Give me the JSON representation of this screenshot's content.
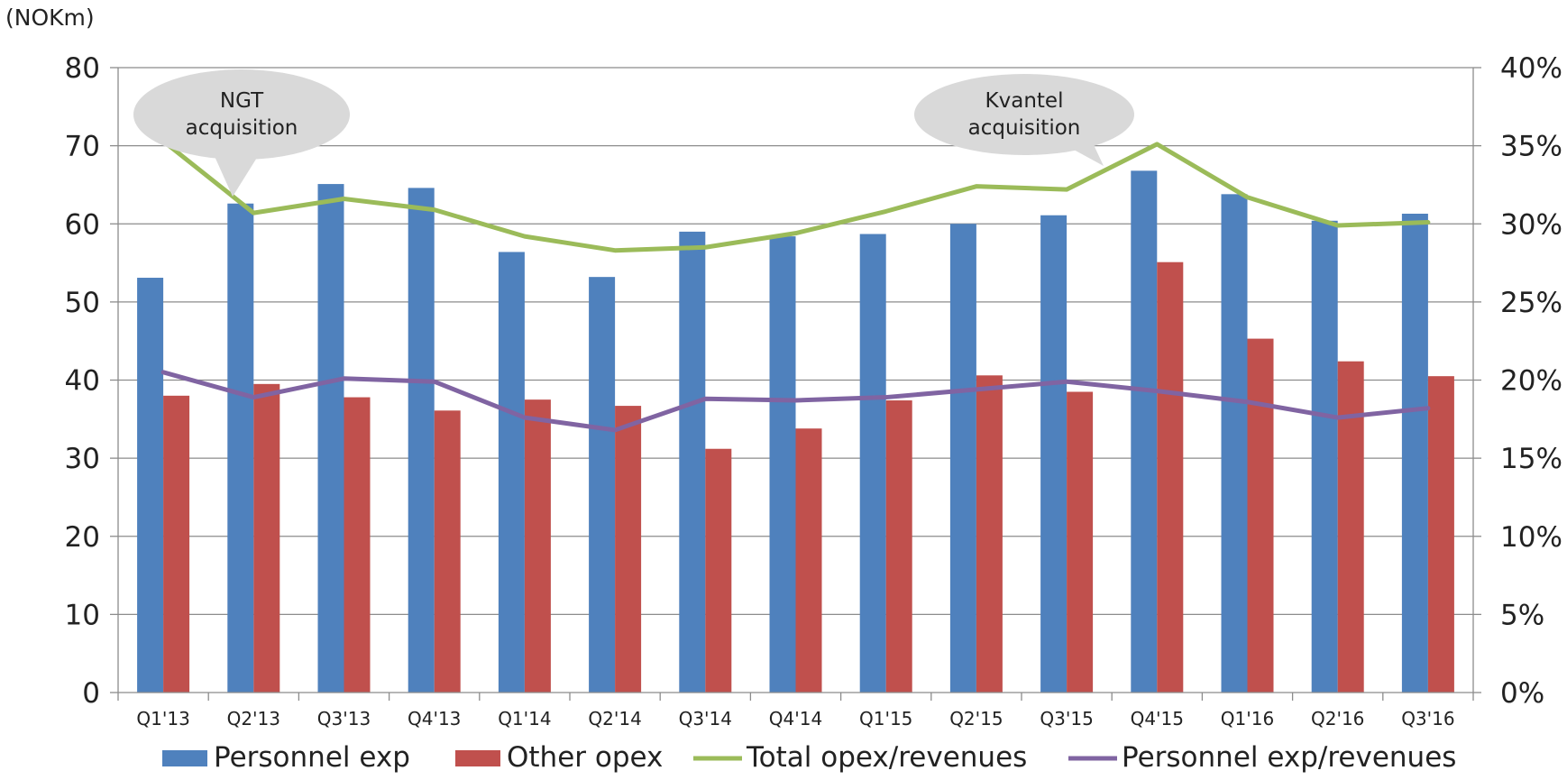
{
  "chart_data": {
    "type": "bar",
    "title": "",
    "unit_label": "(NOKm)",
    "categories": [
      "Q1'13",
      "Q2'13",
      "Q3'13",
      "Q4'13",
      "Q1'14",
      "Q2'14",
      "Q3'14",
      "Q4'14",
      "Q1'15",
      "Q2'15",
      "Q3'15",
      "Q4'15",
      "Q1'16",
      "Q2'16",
      "Q3'16"
    ],
    "series": [
      {
        "name": "Personnel exp",
        "type": "bar",
        "axis": "left",
        "color": "#4F81BD",
        "values": [
          53.1,
          62.6,
          65.1,
          64.6,
          56.4,
          53.2,
          59.0,
          58.4,
          58.7,
          60.0,
          61.1,
          66.8,
          63.8,
          60.4,
          61.3
        ]
      },
      {
        "name": "Other opex",
        "type": "bar",
        "axis": "left",
        "color": "#C0504D",
        "values": [
          38.0,
          39.5,
          37.8,
          36.1,
          37.5,
          36.7,
          31.2,
          33.8,
          37.4,
          40.6,
          38.5,
          55.1,
          45.3,
          42.4,
          40.5
        ]
      },
      {
        "name": "Total opex/revenues",
        "type": "line",
        "axis": "right",
        "color": "#9BBB59",
        "values": [
          35.3,
          30.7,
          31.6,
          30.9,
          29.2,
          28.3,
          28.5,
          29.4,
          30.8,
          32.4,
          32.2,
          35.1,
          31.7,
          29.9,
          30.1
        ]
      },
      {
        "name": "Personnel exp/revenues",
        "type": "line",
        "axis": "right",
        "color": "#8064A2",
        "values": [
          20.5,
          18.9,
          20.1,
          19.9,
          17.6,
          16.8,
          18.8,
          18.7,
          18.9,
          19.4,
          19.9,
          19.3,
          18.6,
          17.6,
          18.2
        ]
      }
    ],
    "y_left": {
      "range": [
        0,
        80
      ],
      "ticks": [
        0,
        10,
        20,
        30,
        40,
        50,
        60,
        70,
        80
      ],
      "tick_labels": [
        "0",
        "10",
        "20",
        "30",
        "40",
        "50",
        "60",
        "70",
        "80"
      ]
    },
    "y_right": {
      "range": [
        0,
        40
      ],
      "ticks": [
        0,
        5,
        10,
        15,
        20,
        25,
        30,
        35,
        40
      ],
      "tick_labels": [
        "0%",
        "5%",
        "10%",
        "15%",
        "20%",
        "25%",
        "30%",
        "35%",
        "40%"
      ]
    },
    "grid": true,
    "legend_position": "bottom",
    "annotations": [
      {
        "lines": [
          "NGT",
          "acquisition"
        ],
        "category": "Q2'13"
      },
      {
        "lines": [
          "Kvantel",
          "acquisition"
        ],
        "category": "Q4'15"
      }
    ]
  }
}
